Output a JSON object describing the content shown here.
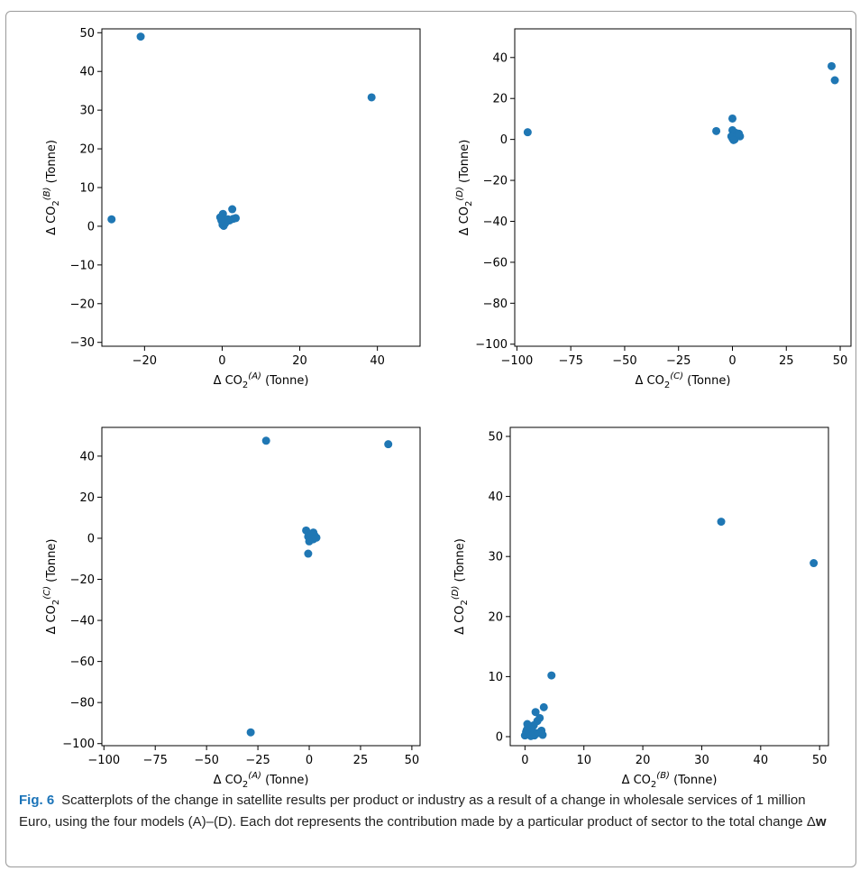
{
  "chart_data": [
    {
      "type": "scatter",
      "x_base": "Δ CO",
      "x_sub": "2",
      "x_sup": "(A)",
      "x_suffix": " (Tonne)",
      "y_base": "Δ CO",
      "y_sub": "2",
      "y_sup": "(B)",
      "y_suffix": " (Tonne)",
      "xlim": [
        -31,
        51
      ],
      "ylim": [
        -31,
        51
      ],
      "xticks": [
        -20,
        0,
        20,
        40
      ],
      "yticks": [
        -30,
        -20,
        -10,
        0,
        10,
        20,
        30,
        40,
        50
      ],
      "points": [
        [
          -21,
          49
        ],
        [
          -28.5,
          1.8
        ],
        [
          38.5,
          33.3
        ],
        [
          0,
          2.6
        ],
        [
          0.2,
          3.2
        ],
        [
          -0.5,
          2.3
        ],
        [
          0.1,
          0.4
        ],
        [
          0.4,
          0.1
        ],
        [
          0.6,
          1.2
        ],
        [
          1,
          1.6
        ],
        [
          1.5,
          1.8
        ],
        [
          2.6,
          4.4
        ],
        [
          2.8,
          1.9
        ],
        [
          3.5,
          2.1
        ],
        [
          1.9,
          1.5
        ],
        [
          0.8,
          0.8
        ],
        [
          -0.2,
          1.5
        ]
      ]
    },
    {
      "type": "scatter",
      "x_base": "Δ CO",
      "x_sub": "2",
      "x_sup": "(C)",
      "x_suffix": " (Tonne)",
      "y_base": "Δ CO",
      "y_sub": "2",
      "y_sup": "(D)",
      "y_suffix": " (Tonne)",
      "xlim": [
        -101,
        55
      ],
      "ylim": [
        -101,
        54
      ],
      "xticks": [
        -100,
        -75,
        -50,
        -25,
        0,
        25,
        50
      ],
      "yticks": [
        -100,
        -80,
        -60,
        -40,
        -20,
        0,
        20,
        40
      ],
      "points": [
        [
          -95,
          3.5
        ],
        [
          -7.5,
          4.1
        ],
        [
          46,
          35.8
        ],
        [
          47.5,
          28.9
        ],
        [
          0,
          10.2
        ],
        [
          0,
          4.5
        ],
        [
          0.5,
          2.5
        ],
        [
          1.5,
          3.2
        ],
        [
          2.5,
          2.5
        ],
        [
          3.5,
          1.5
        ],
        [
          0,
          0.5
        ],
        [
          -0.5,
          1.5
        ],
        [
          1,
          0
        ],
        [
          2,
          1.8
        ],
        [
          3,
          2.8
        ],
        [
          0.5,
          -0.3
        ]
      ]
    },
    {
      "type": "scatter",
      "x_base": "Δ CO",
      "x_sub": "2",
      "x_sup": "(A)",
      "x_suffix": " (Tonne)",
      "y_base": "Δ CO",
      "y_sub": "2",
      "y_sup": "(C)",
      "y_suffix": " (Tonne)",
      "xlim": [
        -101,
        54
      ],
      "ylim": [
        -101,
        54
      ],
      "xticks": [
        -100,
        -75,
        -50,
        -25,
        0,
        25,
        50
      ],
      "yticks": [
        -100,
        -80,
        -60,
        -40,
        -20,
        0,
        20,
        40
      ],
      "points": [
        [
          -21,
          47.5
        ],
        [
          38.5,
          45.8
        ],
        [
          -28.5,
          -94.5
        ],
        [
          -0.5,
          -7.5
        ],
        [
          -1.5,
          3.8
        ],
        [
          0,
          1.5
        ],
        [
          2,
          2.8
        ],
        [
          2.5,
          1.5
        ],
        [
          3.5,
          0.3
        ],
        [
          0.5,
          0
        ],
        [
          -0.5,
          0.8
        ],
        [
          1,
          2
        ],
        [
          2,
          -0.5
        ],
        [
          0,
          -1.5
        ]
      ]
    },
    {
      "type": "scatter",
      "x_base": "Δ CO",
      "x_sub": "2",
      "x_sup": "(B)",
      "x_suffix": " (Tonne)",
      "y_base": "Δ CO",
      "y_sub": "2",
      "y_sup": "(D)",
      "y_suffix": " (Tonne)",
      "xlim": [
        -2.5,
        51.5
      ],
      "ylim": [
        -1.5,
        51.5
      ],
      "xticks": [
        0,
        10,
        20,
        30,
        40,
        50
      ],
      "yticks": [
        0,
        10,
        20,
        30,
        40,
        50
      ],
      "points": [
        [
          33.3,
          35.8
        ],
        [
          49,
          28.9
        ],
        [
          4.5,
          10.2
        ],
        [
          3.2,
          4.9
        ],
        [
          1.8,
          4.1
        ],
        [
          2.5,
          3.1
        ],
        [
          2.1,
          2.6
        ],
        [
          1.5,
          1.9
        ],
        [
          0.5,
          1.5
        ],
        [
          0.2,
          0.8
        ],
        [
          0,
          0.2
        ],
        [
          1.2,
          1.2
        ],
        [
          2.8,
          1
        ],
        [
          0.8,
          0.5
        ],
        [
          1.6,
          0.2
        ],
        [
          0.4,
          2.1
        ],
        [
          3,
          0.3
        ],
        [
          2.2,
          0.6
        ],
        [
          0.3,
          1.1
        ],
        [
          1,
          0.1
        ]
      ]
    }
  ],
  "caption": {
    "label": "Fig. 6",
    "text": "Scatterplots of the change in satellite results per product or industry as a result of a change in wholesale services of 1 million Euro, using the four models (A)–(D). Each dot represents the contribution made by a particular product of sector to the total change ",
    "delta": "Δ",
    "bold_w": "w"
  },
  "colors": {
    "point": "#1f77b4",
    "axis": "#000000",
    "caption_label": "#1a73b8"
  }
}
